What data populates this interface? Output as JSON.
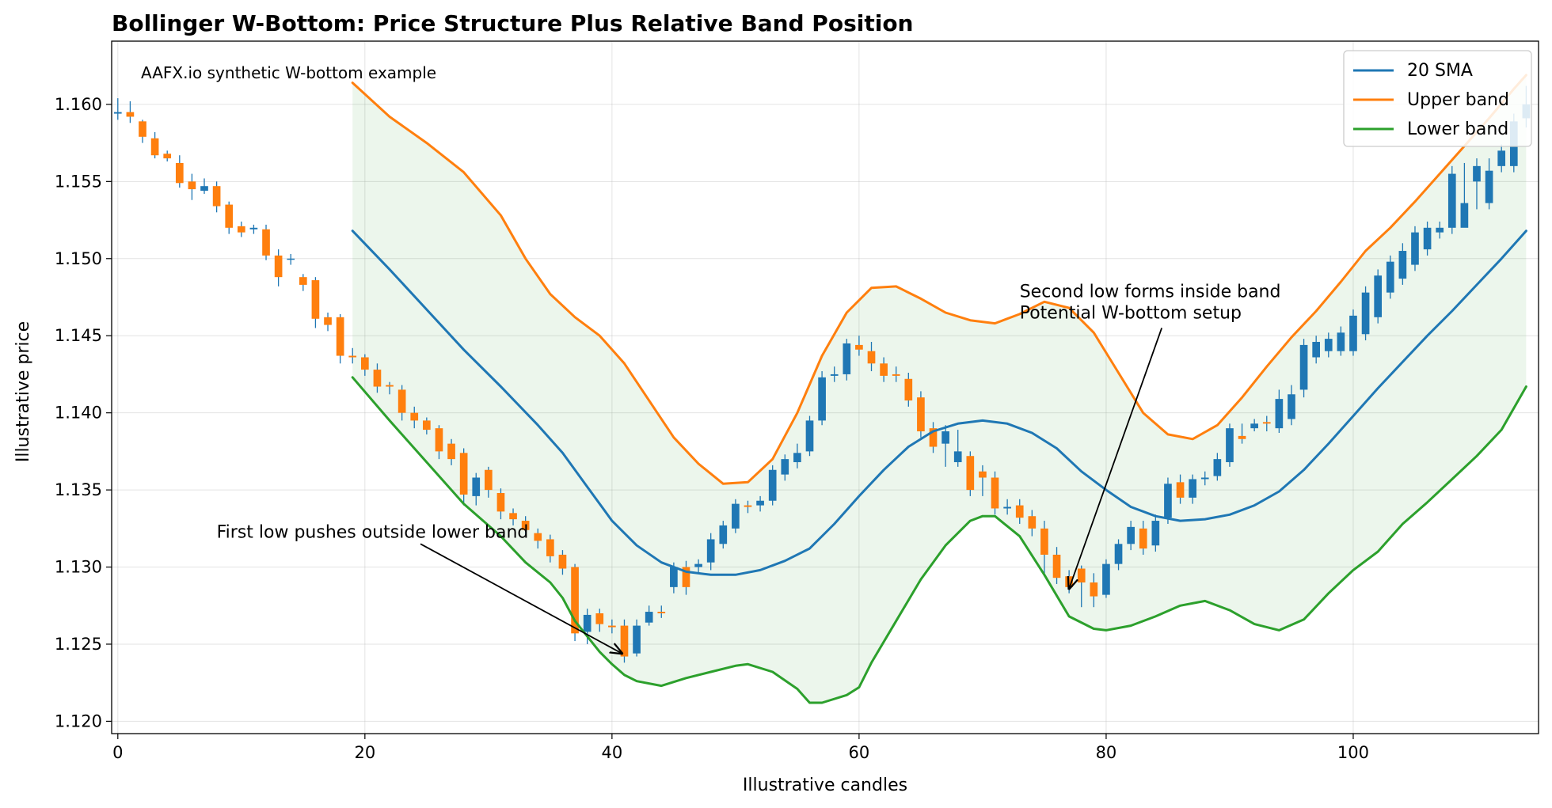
{
  "chart_data": {
    "type": "line",
    "title": "Bollinger W-Bottom: Price Structure Plus Relative Band Position",
    "note": "AAFX.io synthetic W-bottom example",
    "xlabel": "Illustrative candles",
    "ylabel": "Illustrative price",
    "xlim": [
      -0.5,
      115
    ],
    "ylim": [
      1.1192,
      1.1641
    ],
    "xticks": [
      0,
      20,
      40,
      60,
      80,
      100
    ],
    "xtick_labels": [
      "0",
      "20",
      "40",
      "60",
      "80",
      "100"
    ],
    "yticks": [
      1.12,
      1.125,
      1.13,
      1.135,
      1.14,
      1.145,
      1.15,
      1.155,
      1.16
    ],
    "ytick_labels": [
      "1.120",
      "1.125",
      "1.130",
      "1.135",
      "1.140",
      "1.145",
      "1.150",
      "1.155",
      "1.160"
    ],
    "grid": true,
    "legend_position": "top-right",
    "colors": {
      "sma": "#1f77b4",
      "upper": "#ff7f0e",
      "lower": "#2ca02c",
      "band_fill": "#2ca02c",
      "bull_candle": "#1f77b4",
      "bear_candle": "#ff7f0e"
    },
    "series": [
      {
        "name": "20 SMA",
        "x": [
          19,
          22,
          25,
          28,
          31,
          34,
          36,
          38,
          40,
          42,
          44,
          46,
          48,
          50,
          52,
          54,
          56,
          58,
          60,
          62,
          64,
          66,
          68,
          70,
          72,
          74,
          76,
          78,
          80,
          82,
          84,
          86,
          88,
          90,
          92,
          94,
          96,
          98,
          100,
          102,
          104,
          106,
          108,
          110,
          112,
          114
        ],
        "values": [
          1.1518,
          1.1493,
          1.1467,
          1.1441,
          1.1417,
          1.1392,
          1.1374,
          1.1352,
          1.133,
          1.1314,
          1.1303,
          1.1297,
          1.1295,
          1.1295,
          1.1298,
          1.1304,
          1.1312,
          1.1328,
          1.1346,
          1.1363,
          1.1378,
          1.1388,
          1.1393,
          1.1395,
          1.1393,
          1.1387,
          1.1377,
          1.1362,
          1.135,
          1.1339,
          1.1333,
          1.133,
          1.1331,
          1.1334,
          1.134,
          1.1349,
          1.1363,
          1.138,
          1.1398,
          1.1416,
          1.1433,
          1.145,
          1.1466,
          1.1483,
          1.15,
          1.1518
        ]
      },
      {
        "name": "Upper band",
        "x": [
          19,
          22,
          25,
          28,
          31,
          33,
          35,
          37,
          39,
          41,
          43,
          45,
          47,
          49,
          51,
          53,
          55,
          57,
          59,
          61,
          63,
          65,
          67,
          69,
          71,
          73,
          75,
          77,
          79,
          81,
          83,
          85,
          87,
          89,
          91,
          93,
          95,
          97,
          99,
          101,
          103,
          105,
          107,
          109,
          111,
          113,
          114
        ],
        "values": [
          1.1614,
          1.1592,
          1.1575,
          1.1556,
          1.1528,
          1.15,
          1.1477,
          1.1462,
          1.145,
          1.1432,
          1.1408,
          1.1384,
          1.1367,
          1.1354,
          1.1355,
          1.137,
          1.14,
          1.1437,
          1.1465,
          1.1481,
          1.1482,
          1.1474,
          1.1465,
          1.146,
          1.1458,
          1.1464,
          1.1472,
          1.1468,
          1.1452,
          1.1426,
          1.14,
          1.1386,
          1.1383,
          1.1392,
          1.141,
          1.143,
          1.1449,
          1.1466,
          1.1485,
          1.1505,
          1.152,
          1.1537,
          1.1555,
          1.1573,
          1.1591,
          1.161,
          1.1619
        ]
      },
      {
        "name": "Lower band",
        "x": [
          19,
          22,
          25,
          28,
          31,
          33,
          35,
          36,
          37,
          39,
          40,
          41,
          42,
          44,
          46,
          48,
          50,
          51,
          53,
          55,
          56,
          57,
          59,
          60,
          61,
          63,
          65,
          67,
          69,
          70,
          71,
          73,
          75,
          77,
          79,
          80,
          82,
          84,
          86,
          88,
          90,
          92,
          94,
          96,
          98,
          100,
          102,
          104,
          106,
          108,
          110,
          112,
          114
        ],
        "values": [
          1.1423,
          1.1395,
          1.1368,
          1.1341,
          1.132,
          1.1303,
          1.129,
          1.128,
          1.1265,
          1.1245,
          1.1237,
          1.123,
          1.1226,
          1.1223,
          1.1228,
          1.1232,
          1.1236,
          1.1237,
          1.1232,
          1.1221,
          1.1212,
          1.1212,
          1.1217,
          1.1222,
          1.1238,
          1.1265,
          1.1292,
          1.1314,
          1.133,
          1.1333,
          1.1333,
          1.132,
          1.1295,
          1.1268,
          1.126,
          1.1259,
          1.1262,
          1.1268,
          1.1275,
          1.1278,
          1.1272,
          1.1263,
          1.1259,
          1.1266,
          1.1283,
          1.1298,
          1.131,
          1.1328,
          1.1342,
          1.1357,
          1.1372,
          1.1389,
          1.1417
        ]
      }
    ],
    "candles": {
      "x": [
        0,
        1,
        2,
        3,
        4,
        5,
        6,
        7,
        8,
        9,
        10,
        11,
        12,
        13,
        14,
        15,
        16,
        17,
        18,
        19,
        20,
        21,
        22,
        23,
        24,
        25,
        26,
        27,
        28,
        29,
        30,
        31,
        32,
        33,
        34,
        35,
        36,
        37,
        38,
        39,
        40,
        41,
        42,
        43,
        44,
        45,
        46,
        47,
        48,
        49,
        50,
        51,
        52,
        53,
        54,
        55,
        56,
        57,
        58,
        59,
        60,
        61,
        62,
        63,
        64,
        65,
        66,
        67,
        68,
        69,
        70,
        71,
        72,
        73,
        74,
        75,
        76,
        77,
        78,
        79,
        80,
        81,
        82,
        83,
        84,
        85,
        86,
        87,
        88,
        89,
        90,
        91,
        92,
        93,
        94,
        95,
        96,
        97,
        98,
        99,
        100,
        101,
        102,
        103,
        104,
        105,
        106,
        107,
        108,
        109,
        110,
        111,
        112,
        113,
        114
      ],
      "open": [
        1.1594,
        1.1595,
        1.1589,
        1.1578,
        1.1568,
        1.1562,
        1.155,
        1.1544,
        1.1547,
        1.1535,
        1.1521,
        1.1519,
        1.1519,
        1.1502,
        1.15,
        1.1488,
        1.1486,
        1.1462,
        1.1462,
        1.1437,
        1.1436,
        1.1428,
        1.1418,
        1.1415,
        1.14,
        1.1395,
        1.139,
        1.138,
        1.1374,
        1.1346,
        1.1363,
        1.1348,
        1.1335,
        1.133,
        1.1322,
        1.1318,
        1.1308,
        1.13,
        1.1258,
        1.127,
        1.1262,
        1.1262,
        1.1244,
        1.1264,
        1.1271,
        1.1287,
        1.13,
        1.13,
        1.1303,
        1.1315,
        1.1325,
        1.134,
        1.134,
        1.1343,
        1.136,
        1.1368,
        1.1375,
        1.1395,
        1.1424,
        1.1425,
        1.1444,
        1.144,
        1.1432,
        1.1425,
        1.1422,
        1.141,
        1.139,
        1.138,
        1.1368,
        1.1372,
        1.1362,
        1.1358,
        1.1338,
        1.134,
        1.1333,
        1.1325,
        1.1308,
        1.1294,
        1.1299,
        1.129,
        1.1282,
        1.1302,
        1.1315,
        1.1325,
        1.1314,
        1.1332,
        1.1355,
        1.1345,
        1.1357,
        1.1359,
        1.1368,
        1.1385,
        1.139,
        1.1394,
        1.139,
        1.1396,
        1.1415,
        1.1436,
        1.144,
        1.144,
        1.144,
        1.1451,
        1.1462,
        1.1478,
        1.1487,
        1.1496,
        1.1506,
        1.1517,
        1.152,
        1.152,
        1.155,
        1.1536,
        1.156,
        1.156,
        1.1591
      ],
      "close": [
        1.1595,
        1.1592,
        1.1579,
        1.1567,
        1.1565,
        1.1549,
        1.1545,
        1.1547,
        1.1534,
        1.152,
        1.1517,
        1.152,
        1.1502,
        1.1488,
        1.15,
        1.1483,
        1.1461,
        1.1457,
        1.1437,
        1.1436,
        1.1428,
        1.1417,
        1.1417,
        1.14,
        1.1395,
        1.1389,
        1.1375,
        1.137,
        1.1347,
        1.1358,
        1.135,
        1.1336,
        1.1331,
        1.1324,
        1.1317,
        1.1307,
        1.1299,
        1.1257,
        1.1269,
        1.1263,
        1.1261,
        1.1242,
        1.1262,
        1.1271,
        1.127,
        1.13,
        1.1287,
        1.1302,
        1.1318,
        1.1327,
        1.1341,
        1.1339,
        1.1343,
        1.1363,
        1.137,
        1.1374,
        1.1395,
        1.1423,
        1.1425,
        1.1445,
        1.1441,
        1.1432,
        1.1424,
        1.1424,
        1.1408,
        1.1388,
        1.1378,
        1.1388,
        1.1375,
        1.135,
        1.1358,
        1.1338,
        1.1339,
        1.1332,
        1.1325,
        1.1308,
        1.1293,
        1.1287,
        1.129,
        1.1281,
        1.1302,
        1.1315,
        1.1326,
        1.1312,
        1.133,
        1.1354,
        1.1345,
        1.1357,
        1.1358,
        1.137,
        1.139,
        1.1383,
        1.1393,
        1.1393,
        1.1409,
        1.1412,
        1.1444,
        1.1446,
        1.1448,
        1.1452,
        1.1463,
        1.1478,
        1.1489,
        1.1498,
        1.1505,
        1.1517,
        1.152,
        1.152,
        1.1555,
        1.1536,
        1.156,
        1.1557,
        1.157,
        1.1589,
        1.16
      ],
      "high": [
        1.1604,
        1.1602,
        1.159,
        1.1582,
        1.157,
        1.1567,
        1.1555,
        1.1552,
        1.155,
        1.1537,
        1.1524,
        1.1522,
        1.1522,
        1.1506,
        1.1503,
        1.149,
        1.1488,
        1.1465,
        1.1464,
        1.1442,
        1.1438,
        1.1432,
        1.142,
        1.1418,
        1.1404,
        1.1397,
        1.1392,
        1.1383,
        1.1377,
        1.1361,
        1.1365,
        1.1351,
        1.1338,
        1.1333,
        1.1325,
        1.1321,
        1.1311,
        1.1302,
        1.1273,
        1.1273,
        1.1266,
        1.1266,
        1.1266,
        1.1275,
        1.1275,
        1.1303,
        1.1304,
        1.1305,
        1.1322,
        1.133,
        1.1344,
        1.1343,
        1.1346,
        1.1366,
        1.1373,
        1.138,
        1.1398,
        1.1427,
        1.143,
        1.1448,
        1.145,
        1.1446,
        1.1436,
        1.143,
        1.1426,
        1.1414,
        1.1394,
        1.1392,
        1.1389,
        1.1375,
        1.1366,
        1.1362,
        1.1344,
        1.1344,
        1.1337,
        1.133,
        1.1313,
        1.1298,
        1.1301,
        1.1296,
        1.1305,
        1.1318,
        1.133,
        1.133,
        1.1334,
        1.1358,
        1.136,
        1.136,
        1.1362,
        1.1374,
        1.1393,
        1.1393,
        1.1396,
        1.1398,
        1.1415,
        1.1418,
        1.1448,
        1.145,
        1.1452,
        1.1456,
        1.1467,
        1.1482,
        1.1493,
        1.1502,
        1.151,
        1.1521,
        1.1524,
        1.1524,
        1.156,
        1.1562,
        1.1565,
        1.1565,
        1.1574,
        1.1594,
        1.1612
      ],
      "low": [
        1.159,
        1.1588,
        1.1575,
        1.1565,
        1.1563,
        1.1546,
        1.1538,
        1.1542,
        1.153,
        1.1516,
        1.1514,
        1.1516,
        1.1499,
        1.1482,
        1.1496,
        1.1479,
        1.1455,
        1.1453,
        1.1432,
        1.1432,
        1.1424,
        1.1413,
        1.1412,
        1.1395,
        1.139,
        1.1386,
        1.137,
        1.1366,
        1.134,
        1.134,
        1.1345,
        1.1331,
        1.1327,
        1.132,
        1.1312,
        1.1303,
        1.1295,
        1.1252,
        1.125,
        1.1258,
        1.1257,
        1.1238,
        1.1242,
        1.1262,
        1.1267,
        1.1283,
        1.1282,
        1.1296,
        1.1298,
        1.1312,
        1.1322,
        1.1335,
        1.1336,
        1.134,
        1.1356,
        1.1364,
        1.1372,
        1.1392,
        1.142,
        1.1421,
        1.1437,
        1.1427,
        1.142,
        1.142,
        1.1404,
        1.1384,
        1.1374,
        1.1365,
        1.1365,
        1.1346,
        1.1346,
        1.1334,
        1.1334,
        1.1328,
        1.132,
        1.1294,
        1.1289,
        1.1283,
        1.1274,
        1.1274,
        1.128,
        1.1298,
        1.1311,
        1.1308,
        1.131,
        1.1328,
        1.1341,
        1.1341,
        1.1353,
        1.1356,
        1.1365,
        1.138,
        1.1388,
        1.1388,
        1.1387,
        1.1392,
        1.141,
        1.1432,
        1.1436,
        1.1437,
        1.1437,
        1.1447,
        1.1458,
        1.1474,
        1.1483,
        1.1492,
        1.1502,
        1.1513,
        1.1516,
        1.153,
        1.1532,
        1.1532,
        1.1556,
        1.1556,
        1.1585
      ]
    },
    "annotations": [
      {
        "text": "First low pushes outside lower band",
        "text_x": 8,
        "text_y": 1.1319,
        "arrow_from_x": 24.5,
        "arrow_from_y": 1.1315,
        "arrow_to_x": 40.8,
        "arrow_to_y": 1.1244
      },
      {
        "text": "Second low forms inside band\nPotential W-bottom setup",
        "text_x": 73,
        "text_y": 1.1475,
        "arrow_from_x": 84.5,
        "arrow_from_y": 1.1455,
        "arrow_to_x": 77,
        "arrow_to_y": 1.1286
      }
    ]
  }
}
